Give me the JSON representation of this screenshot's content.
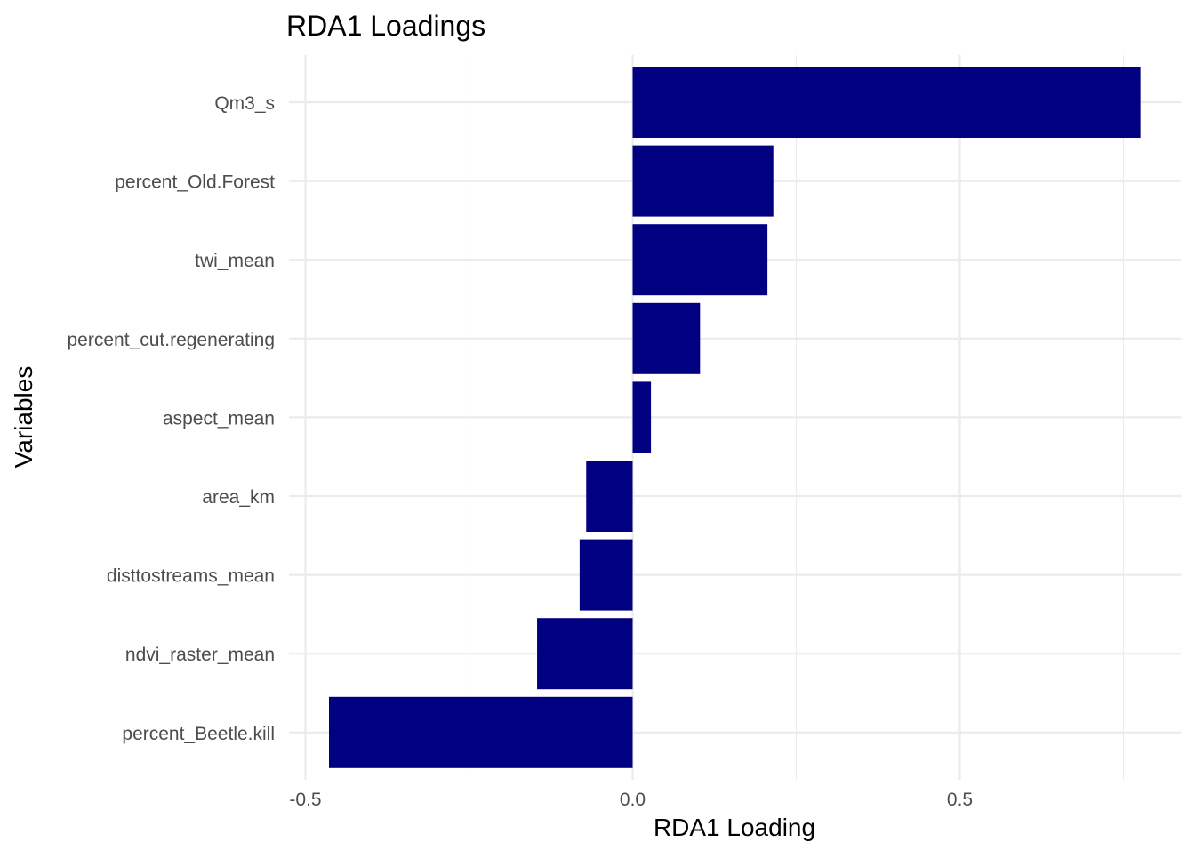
{
  "chart_data": {
    "type": "bar",
    "orientation": "horizontal",
    "title": "RDA1 Loadings",
    "xlabel": "RDA1 Loading",
    "ylabel": "Variables",
    "categories": [
      "Qm3_s",
      "percent_Old.Forest",
      "twi_mean",
      "percent_cut.regenerating",
      "aspect_mean",
      "area_km",
      "disttostreams_mean",
      "ndvi_raster_mean",
      "percent_Beetle.kill"
    ],
    "values": [
      0.776,
      0.215,
      0.206,
      0.103,
      0.028,
      -0.071,
      -0.081,
      -0.146,
      -0.464
    ],
    "xlim": [
      -0.5,
      0.8
    ],
    "xticks": [
      -0.5,
      0.0,
      0.5
    ],
    "xtick_labels": [
      "-0.5",
      "0.0",
      "0.5"
    ],
    "bar_color": "#000080",
    "grid": true,
    "legend": false
  }
}
